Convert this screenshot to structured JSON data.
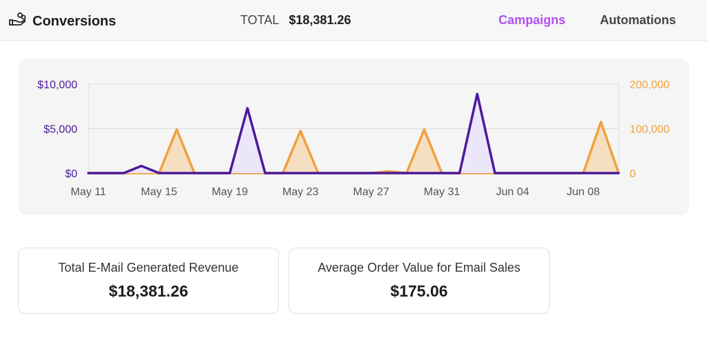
{
  "header": {
    "title": "Conversions",
    "title_icon": "hand-coins-icon",
    "total_label": "TOTAL",
    "total_value": "$18,381.26",
    "tabs": [
      {
        "label": "Campaigns",
        "active": true
      },
      {
        "label": "Automations",
        "active": false
      }
    ]
  },
  "colors": {
    "accent": "#b04ff0",
    "revenue": "#4a1a9a",
    "orders": "#f0a040"
  },
  "chart_data": {
    "type": "area",
    "x": [
      "May 11",
      "May 12",
      "May 13",
      "May 14",
      "May 15",
      "May 16",
      "May 17",
      "May 18",
      "May 19",
      "May 20",
      "May 21",
      "May 22",
      "May 23",
      "May 24",
      "May 25",
      "May 26",
      "May 27",
      "May 28",
      "May 29",
      "May 30",
      "May 31",
      "Jun 01",
      "Jun 02",
      "Jun 03",
      "Jun 04",
      "Jun 05",
      "Jun 06",
      "Jun 07",
      "Jun 08",
      "Jun 09",
      "Jun 10"
    ],
    "x_ticks": [
      "May 11",
      "May 15",
      "May 19",
      "May 23",
      "May 27",
      "May 31",
      "Jun 04",
      "Jun 08"
    ],
    "y_left": {
      "ticks": [
        "$0",
        "$5,000",
        "$10,000"
      ],
      "range": [
        0,
        10000
      ]
    },
    "y_right": {
      "ticks": [
        "0",
        "100,000",
        "200,000"
      ],
      "range": [
        0,
        200000
      ]
    },
    "grid": true,
    "series": [
      {
        "axis": "left",
        "color": "#4a1a9a",
        "fill": "#ece6fb",
        "values": [
          0,
          0,
          0,
          800,
          0,
          0,
          0,
          0,
          0,
          7300,
          0,
          0,
          0,
          0,
          0,
          0,
          0,
          0,
          0,
          0,
          0,
          0,
          8900,
          0,
          0,
          0,
          0,
          0,
          0,
          0,
          0
        ]
      },
      {
        "axis": "right",
        "color": "#f0a040",
        "fill": "#f6dfc0",
        "values": [
          0,
          0,
          0,
          0,
          0,
          98000,
          0,
          0,
          0,
          0,
          0,
          0,
          95000,
          0,
          0,
          0,
          0,
          4000,
          0,
          98000,
          0,
          0,
          0,
          0,
          0,
          0,
          0,
          0,
          0,
          115000,
          0
        ]
      }
    ]
  },
  "cards": [
    {
      "label": "Total E-Mail Generated Revenue",
      "value": "$18,381.26"
    },
    {
      "label": "Average Order Value for Email Sales",
      "value": "$175.06"
    }
  ]
}
